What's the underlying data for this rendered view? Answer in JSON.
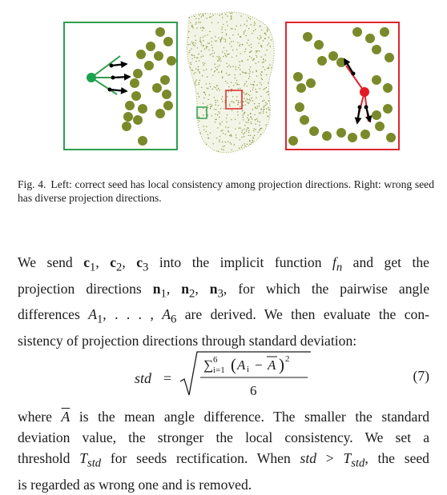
{
  "figure": {
    "caption_label": "Fig. 4.",
    "caption_text": "Left: correct seed has local consistency among projection directions. Right: wrong seed has diverse projection directions.",
    "colors": {
      "left_box": "#2e9e4f",
      "right_box": "#e0252b",
      "points": "#7a8a2a",
      "seed_good": "#1aa34a",
      "seed_bad": "#e31b23"
    }
  },
  "para1": {
    "l1a": "We send ",
    "l1m": "c",
    "l1b": " into the implicit function ",
    "l2": "projection directions",
    "l2b": ", for which the pairwise angle",
    "l3a": "differences ",
    "l3b": " are derived. We then evaluate the con-",
    "l4": "sistency of projection directions through standard deviation:"
  },
  "equation": {
    "lhs": "std",
    "eqsign": "=",
    "denominator": "6",
    "sum_top": "6",
    "sum_bottom": "i=1",
    "number": "(7)"
  },
  "para2": {
    "l1a": "where ",
    "l1b": " is the mean angle difference. The smaller the standard",
    "l2": "deviation value, the stronger the local consistency. We set a",
    "l3a": "threshold ",
    "l3b": " for seeds rectification. When ",
    "l3c": ", the seed",
    "l4": "is regarded as wrong one and is removed."
  }
}
